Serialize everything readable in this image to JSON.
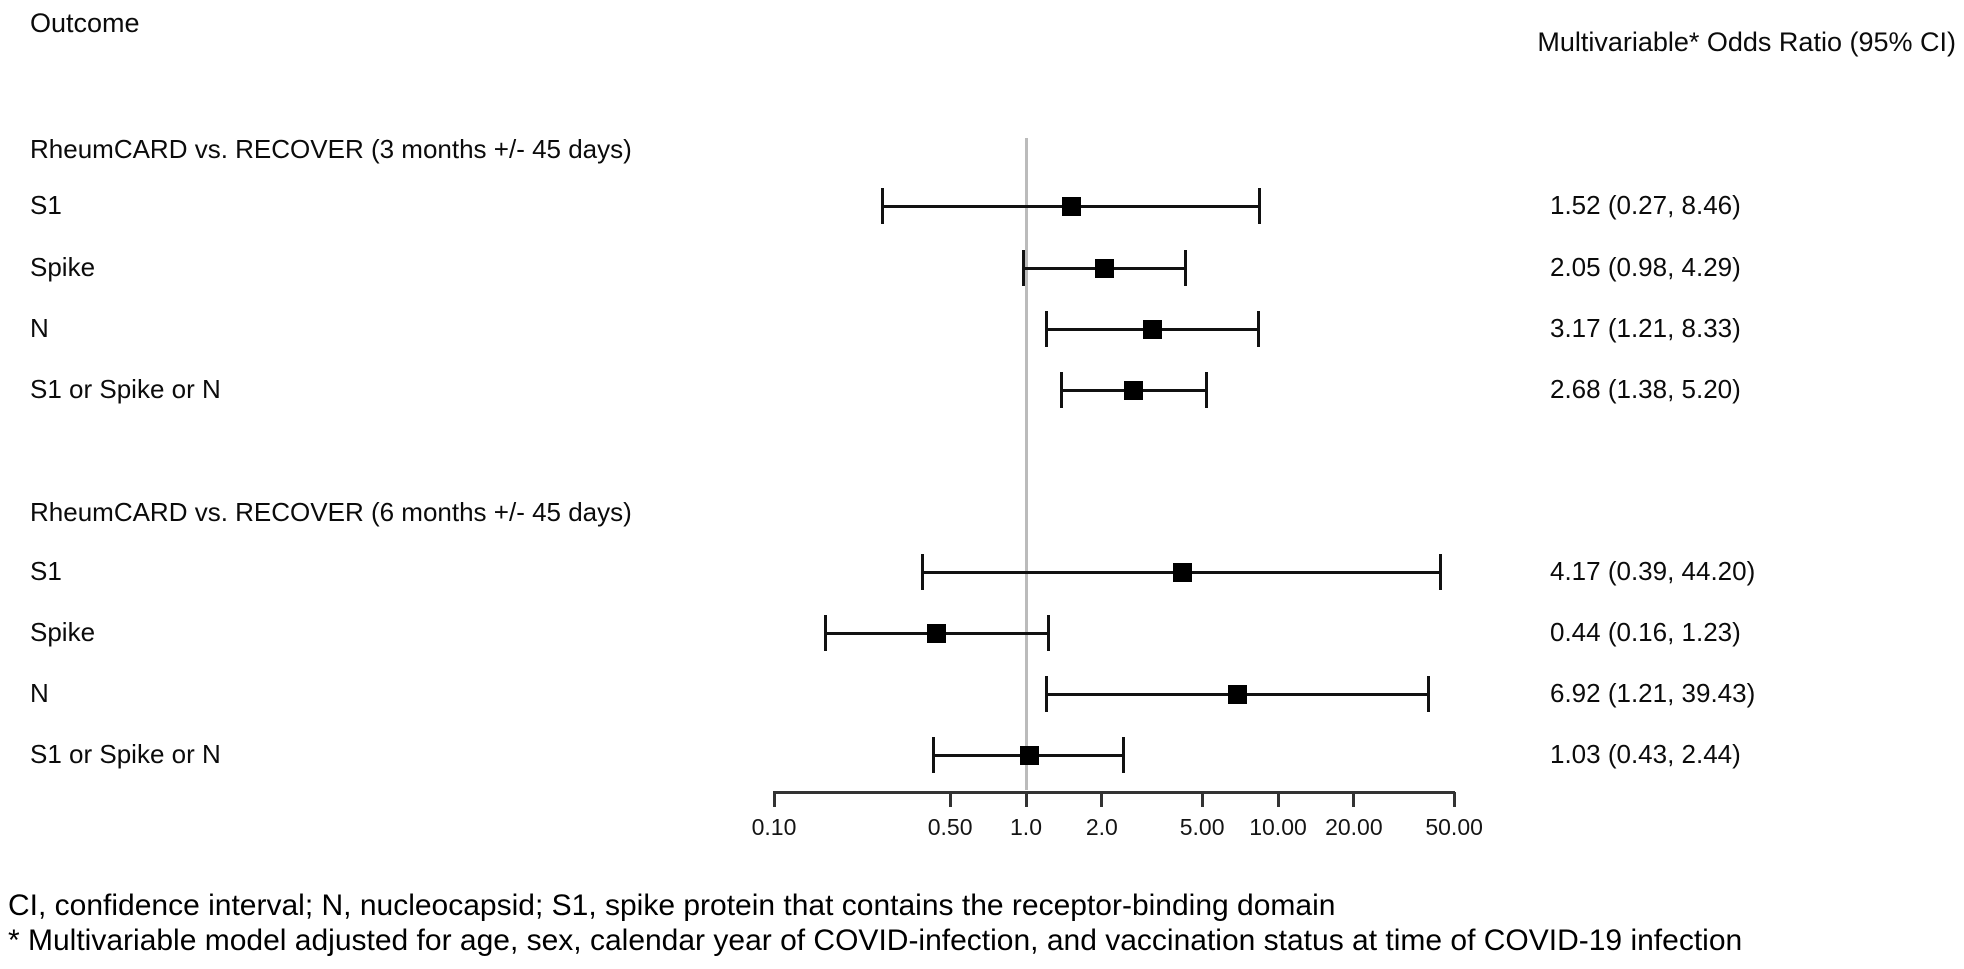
{
  "headers": {
    "left": "Outcome",
    "right": "Multivariable* Odds Ratio (95% CI)"
  },
  "chart_data": {
    "type": "scatter",
    "subtype": "forest-plot",
    "x_scale": "log10",
    "reference_line": 1.0,
    "xlim": [
      0.1,
      50
    ],
    "xticks": [
      {
        "value": 0.1,
        "label": "0.10"
      },
      {
        "value": 0.5,
        "label": "0.50"
      },
      {
        "value": 1.0,
        "label": "1.0"
      },
      {
        "value": 2.0,
        "label": "2.0"
      },
      {
        "value": 5.0,
        "label": "5.00"
      },
      {
        "value": 10.0,
        "label": "10.00"
      },
      {
        "value": 20.0,
        "label": "20.00"
      },
      {
        "value": 50.0,
        "label": "50.00"
      }
    ],
    "groups": [
      {
        "title": "RheumCARD vs. RECOVER (3 months +/- 45 days)",
        "rows": [
          {
            "label": "S1",
            "or": 1.52,
            "ci_low": 0.27,
            "ci_high": 8.46,
            "display": "1.52 (0.27, 8.46)"
          },
          {
            "label": "Spike",
            "or": 2.05,
            "ci_low": 0.98,
            "ci_high": 4.29,
            "display": "2.05 (0.98, 4.29)"
          },
          {
            "label": "N",
            "or": 3.17,
            "ci_low": 1.21,
            "ci_high": 8.33,
            "display": "3.17 (1.21, 8.33)"
          },
          {
            "label": "S1 or Spike or N",
            "or": 2.68,
            "ci_low": 1.38,
            "ci_high": 5.2,
            "display": "2.68 (1.38, 5.20)"
          }
        ]
      },
      {
        "title": "RheumCARD vs. RECOVER (6 months +/- 45 days)",
        "rows": [
          {
            "label": "S1",
            "or": 4.17,
            "ci_low": 0.39,
            "ci_high": 44.2,
            "display": "4.17 (0.39, 44.20)"
          },
          {
            "label": "Spike",
            "or": 0.44,
            "ci_low": 0.16,
            "ci_high": 1.23,
            "display": "0.44 (0.16, 1.23)"
          },
          {
            "label": "N",
            "or": 6.92,
            "ci_low": 1.21,
            "ci_high": 39.43,
            "display": "6.92 (1.21, 39.43)"
          },
          {
            "label": "S1 or Spike or N",
            "or": 1.03,
            "ci_low": 0.43,
            "ci_high": 2.44,
            "display": "1.03 (0.43, 2.44)"
          }
        ]
      }
    ]
  },
  "footnotes": [
    "CI, confidence interval; N, nucleocapsid; S1, spike protein that contains the receptor-binding domain",
    "* Multivariable model adjusted for age, sex, calendar year of COVID-infection, and vaccination status at time of COVID-19 infection"
  ],
  "colors": {
    "marker": "#000000",
    "ci_line": "#111111",
    "reference_line": "#bbbbbb",
    "axis": "#333333",
    "text": "#0b0b0b",
    "background": "#ffffff"
  }
}
